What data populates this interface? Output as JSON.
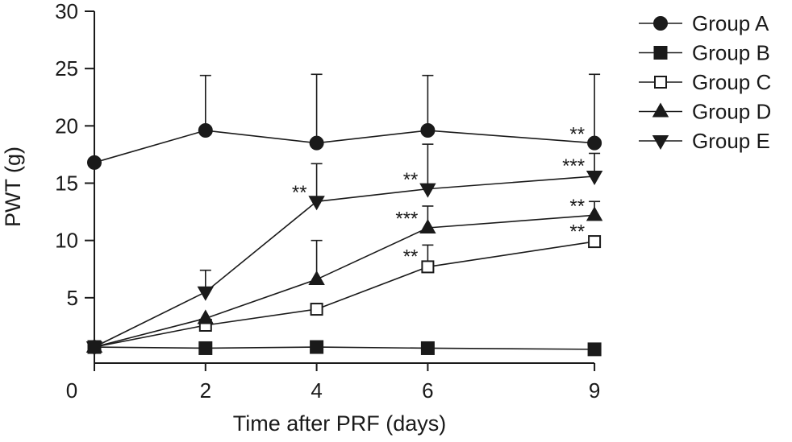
{
  "chart_data": {
    "type": "line",
    "xlabel": "Time after PRF (days)",
    "ylabel": "PWT (g)",
    "x": [
      0,
      2,
      4,
      6,
      9
    ],
    "x_tick_labels": [
      "0",
      "2",
      "4",
      "6",
      "9"
    ],
    "ylim": [
      0,
      30
    ],
    "y_ticks": [
      5,
      10,
      15,
      20,
      25,
      30
    ],
    "y_tick_labels": [
      "5",
      "10",
      "15",
      "20",
      "25",
      "30"
    ],
    "legend_position": "top-right",
    "series": [
      {
        "name": "Group A",
        "marker": "circle-filled",
        "values": [
          16.8,
          19.6,
          18.5,
          19.6,
          18.5
        ],
        "error_upper": [
          null,
          24.4,
          24.5,
          24.4,
          24.5
        ]
      },
      {
        "name": "Group B",
        "marker": "square-filled",
        "values": [
          0.7,
          0.6,
          0.7,
          0.6,
          0.5
        ],
        "error_upper": [
          null,
          null,
          null,
          null,
          null
        ]
      },
      {
        "name": "Group C",
        "marker": "square-open",
        "values": [
          0.7,
          2.6,
          4.0,
          7.7,
          9.9
        ],
        "error_upper": [
          null,
          null,
          null,
          9.6,
          null
        ]
      },
      {
        "name": "Group D",
        "marker": "triangle-up-filled",
        "values": [
          0.7,
          3.2,
          6.6,
          11.1,
          12.2
        ],
        "error_upper": [
          null,
          null,
          10.0,
          13.0,
          13.4
        ]
      },
      {
        "name": "Group E",
        "marker": "triangle-down-filled",
        "values": [
          0.7,
          5.5,
          13.4,
          14.5,
          15.6
        ],
        "error_upper": [
          null,
          7.4,
          16.7,
          18.4,
          17.6
        ]
      }
    ],
    "annotations": [
      {
        "text": "**",
        "x": 4,
        "y": 14.2,
        "near_series": "Group E"
      },
      {
        "text": "**",
        "x": 6,
        "y": 15.3,
        "near_series": "Group E"
      },
      {
        "text": "***",
        "x": 9,
        "y": 16.5,
        "near_series": "Group E"
      },
      {
        "text": "**",
        "x": 9,
        "y": 19.3,
        "near_series": "Group A"
      },
      {
        "text": "***",
        "x": 6,
        "y": 11.9,
        "near_series": "Group D"
      },
      {
        "text": "**",
        "x": 9,
        "y": 13.0,
        "near_series": "Group D"
      },
      {
        "text": "**",
        "x": 6,
        "y": 8.6,
        "near_series": "Group C"
      },
      {
        "text": "**",
        "x": 9,
        "y": 10.8,
        "near_series": "Group C"
      }
    ]
  }
}
